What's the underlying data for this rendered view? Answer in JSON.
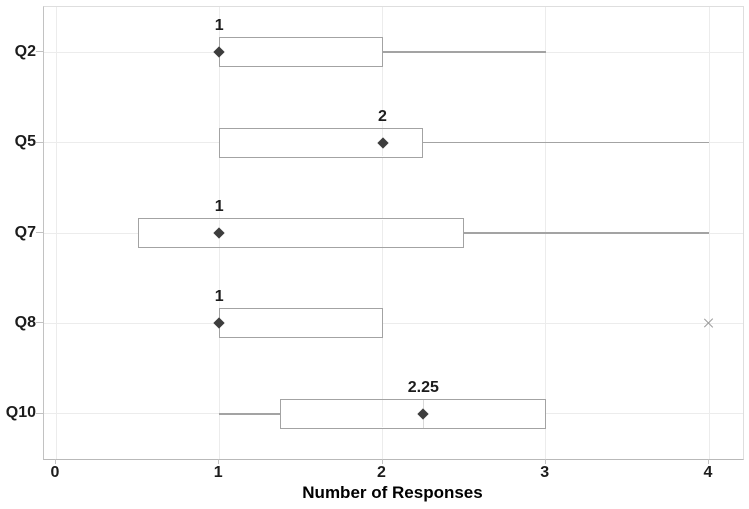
{
  "chart_data": {
    "type": "boxplot",
    "orientation": "horizontal",
    "title": "",
    "xlabel": "Number of Responses",
    "ylabel": "",
    "x_ticks": [
      0,
      1,
      2,
      3,
      4
    ],
    "xlim": [
      0,
      4.28
    ],
    "grid": true,
    "legend": null,
    "categories": [
      "Q2",
      "Q5",
      "Q7",
      "Q8",
      "Q10"
    ],
    "series": [
      {
        "category": "Q2",
        "q1": 1,
        "q3": 2,
        "whisker_low": null,
        "whisker_high": 3,
        "median": null,
        "mean": 1,
        "mean_label": "1",
        "outliers": []
      },
      {
        "category": "Q5",
        "q1": 1,
        "q3": 2.25,
        "whisker_low": null,
        "whisker_high": 4,
        "median": null,
        "mean": 2,
        "mean_label": "2",
        "outliers": []
      },
      {
        "category": "Q7",
        "q1": 0.5,
        "q3": 2.5,
        "whisker_low": null,
        "whisker_high": 4,
        "median": null,
        "mean": 1,
        "mean_label": "1",
        "outliers": []
      },
      {
        "category": "Q8",
        "q1": 1,
        "q3": 2,
        "whisker_low": null,
        "whisker_high": null,
        "median": null,
        "mean": 1,
        "mean_label": "1",
        "outliers": [
          4
        ]
      },
      {
        "category": "Q10",
        "q1": 1.375,
        "q3": 3,
        "whisker_low": 1,
        "whisker_high": null,
        "median": 2.25,
        "mean": 2.25,
        "mean_label": "2.25",
        "outliers": []
      }
    ],
    "markers": {
      "mean_marker": "diamond",
      "outlier_marker": "x"
    },
    "colors": {
      "box_border": "#a3a3a3",
      "whisker": "#a3a3a3",
      "gridline": "#ececec",
      "median_line": "#d9d9d9",
      "axis_line": "#c2c2c2",
      "mean_marker": "#3d3d3d",
      "outlier": "#9c9c9c",
      "text": "#1c1c1c"
    }
  }
}
